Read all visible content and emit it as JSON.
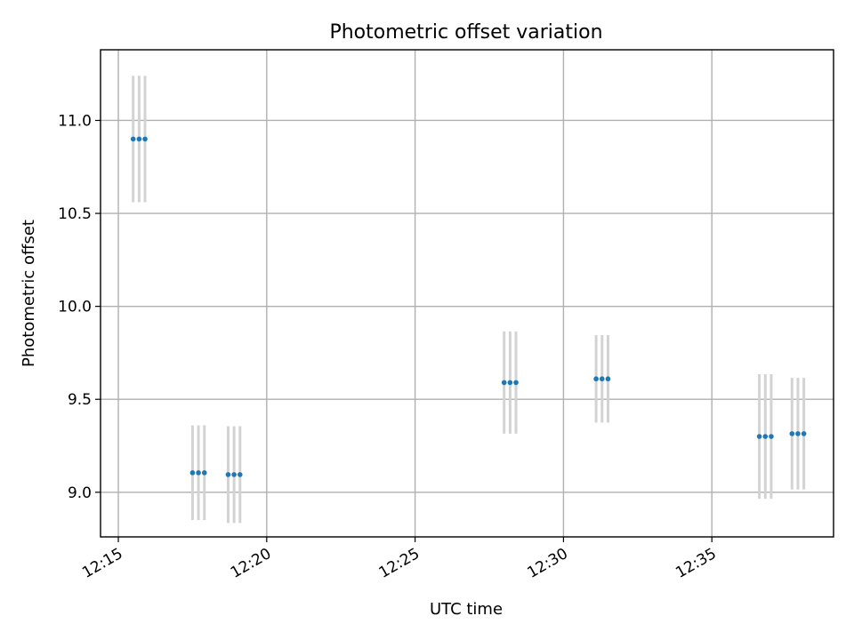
{
  "chart_data": {
    "type": "scatter",
    "title": "Photometric offset variation",
    "xlabel": "UTC time",
    "ylabel": "Photometric offset",
    "grid": true,
    "x_unit": "minutes",
    "xlim": [
      "12:14:24",
      "12:39:06"
    ],
    "ylim": [
      8.76,
      11.38
    ],
    "xticks": [
      "12:15",
      "12:20",
      "12:25",
      "12:30",
      "12:35"
    ],
    "yticks": [
      "9.0",
      "9.5",
      "10.0",
      "10.5",
      "11.0"
    ],
    "errorbar_color": "#d3d3d3",
    "marker_color": "#1f77b4",
    "points": [
      {
        "x": "12:15:30",
        "y": 10.9,
        "err": 0.34
      },
      {
        "x": "12:15:42",
        "y": 10.9,
        "err": 0.34
      },
      {
        "x": "12:15:54",
        "y": 10.9,
        "err": 0.34
      },
      {
        "x": "12:17:30",
        "y": 9.105,
        "err": 0.255
      },
      {
        "x": "12:17:42",
        "y": 9.105,
        "err": 0.255
      },
      {
        "x": "12:17:54",
        "y": 9.105,
        "err": 0.255
      },
      {
        "x": "12:18:42",
        "y": 9.095,
        "err": 0.26
      },
      {
        "x": "12:18:54",
        "y": 9.095,
        "err": 0.26
      },
      {
        "x": "12:19:06",
        "y": 9.095,
        "err": 0.26
      },
      {
        "x": "12:28:00",
        "y": 9.59,
        "err": 0.275
      },
      {
        "x": "12:28:12",
        "y": 9.59,
        "err": 0.275
      },
      {
        "x": "12:28:24",
        "y": 9.59,
        "err": 0.275
      },
      {
        "x": "12:31:06",
        "y": 9.61,
        "err": 0.235
      },
      {
        "x": "12:31:18",
        "y": 9.61,
        "err": 0.235
      },
      {
        "x": "12:31:30",
        "y": 9.61,
        "err": 0.235
      },
      {
        "x": "12:36:36",
        "y": 9.3,
        "err": 0.335
      },
      {
        "x": "12:36:48",
        "y": 9.3,
        "err": 0.335
      },
      {
        "x": "12:37:00",
        "y": 9.3,
        "err": 0.335
      },
      {
        "x": "12:37:42",
        "y": 9.315,
        "err": 0.3
      },
      {
        "x": "12:37:54",
        "y": 9.315,
        "err": 0.3
      },
      {
        "x": "12:38:06",
        "y": 9.315,
        "err": 0.3
      }
    ]
  }
}
